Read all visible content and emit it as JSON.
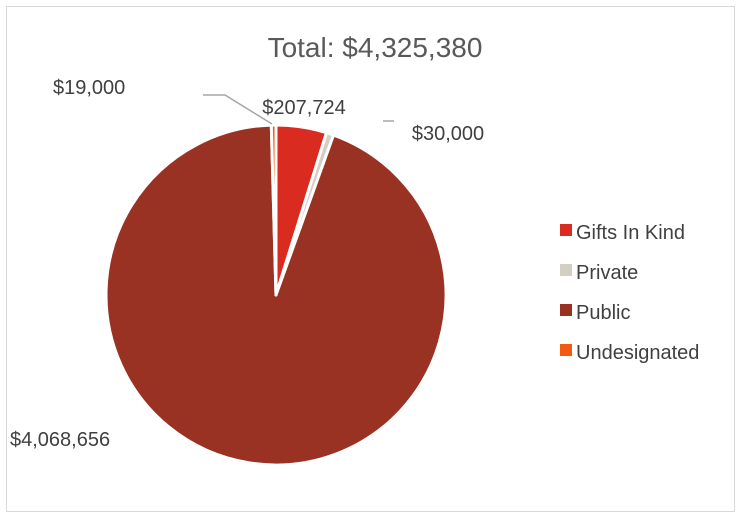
{
  "chart_data": {
    "type": "pie",
    "title": "Total: $4,325,380",
    "categories": [
      "Gifts In Kind",
      "Private",
      "Public",
      "Undesignated"
    ],
    "values": [
      207724,
      30000,
      4068656,
      19000
    ],
    "data_labels": [
      "$207,724",
      "$30,000",
      "$4,068,656",
      "$19,000"
    ],
    "colors": [
      "#d92b1f",
      "#d4cfc4",
      "#9a3224",
      "#f25a0f"
    ],
    "legend_position": "right"
  }
}
